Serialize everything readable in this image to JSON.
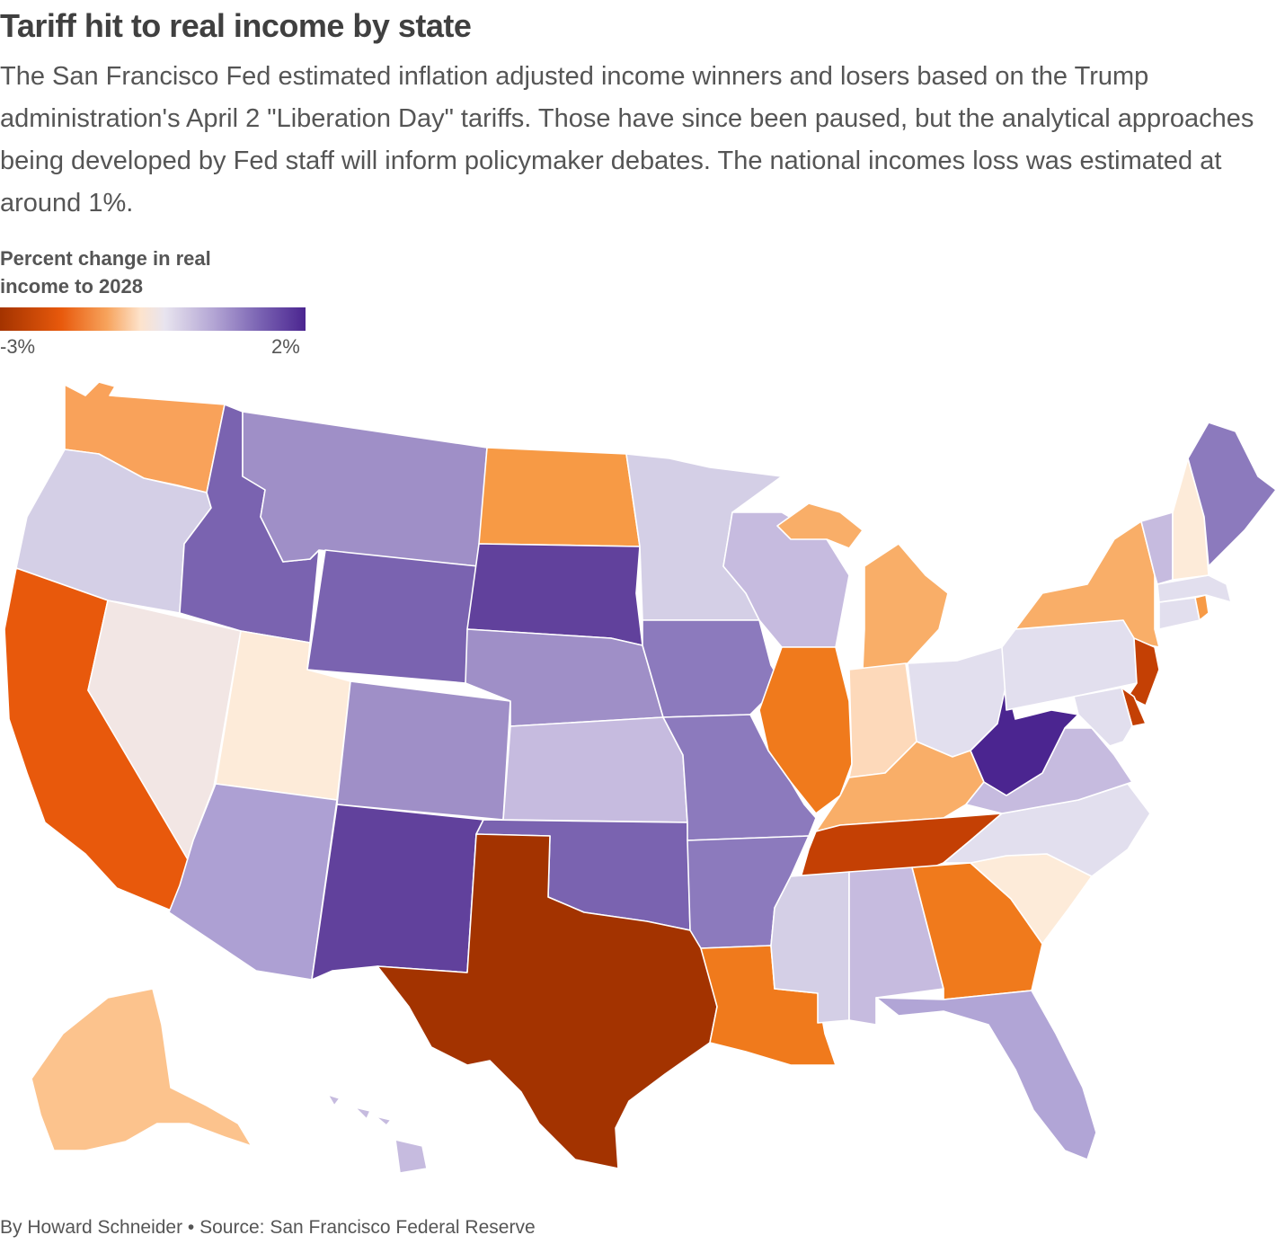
{
  "title": "Tariff hit to real income by state",
  "subtitle": "The San Francisco Fed estimated inflation adjusted income winners and losers based on the Trump administration's April 2 \"Liberation Day\" tariffs. Those have since been paused, but the analytical approaches being developed by Fed staff will inform policymaker debates. The national incomes loss was estimated at around 1%.",
  "legend": {
    "title": "Percent change in real income to 2028",
    "min_label": "-3%",
    "max_label": "2%"
  },
  "colors": {
    "deep_loss": "#a33300",
    "loss": "#c44004",
    "moderate_loss": "#e8590c",
    "orange": "#f79a45",
    "light_orange": "#f9ae68",
    "peach": "#fcc38d",
    "pale_peach": "#fdddc2",
    "cream": "#fdebd9",
    "neutral_pink": "#f2e6e4",
    "light_lavender": "#d4cfe6",
    "pale_lavender": "#e2dfee",
    "lavender": "#c6bbdf",
    "medium_lavender": "#b1a5d6",
    "purple_light": "#9f8fc7",
    "purple_medium": "#8c7abd",
    "purple": "#7a63b0",
    "purple_dark": "#61419c",
    "deep_purple": "#4b2590"
  },
  "states": [
    {
      "name": "WA",
      "color": "#f9a25a"
    },
    {
      "name": "OR",
      "color": "#d4cfe6"
    },
    {
      "name": "CA",
      "color": "#e8590c"
    },
    {
      "name": "NV",
      "color": "#f2e6e4"
    },
    {
      "name": "ID",
      "color": "#7a63b0"
    },
    {
      "name": "MT",
      "color": "#9f8fc7"
    },
    {
      "name": "WY",
      "color": "#7a63b0"
    },
    {
      "name": "UT",
      "color": "#fdebd9"
    },
    {
      "name": "AZ",
      "color": "#ada0d3"
    },
    {
      "name": "CO",
      "color": "#9f8fc7"
    },
    {
      "name": "NM",
      "color": "#61419c"
    },
    {
      "name": "ND",
      "color": "#f79a45"
    },
    {
      "name": "SD",
      "color": "#61419c"
    },
    {
      "name": "NE",
      "color": "#9f8fc7"
    },
    {
      "name": "KS",
      "color": "#c6bbdf"
    },
    {
      "name": "OK",
      "color": "#7a63b0"
    },
    {
      "name": "TX",
      "color": "#a33300"
    },
    {
      "name": "MN",
      "color": "#d4cfe6"
    },
    {
      "name": "IA",
      "color": "#8c7abd"
    },
    {
      "name": "MO",
      "color": "#8c7abd"
    },
    {
      "name": "AR",
      "color": "#8c7abd"
    },
    {
      "name": "LA",
      "color": "#f07a1c"
    },
    {
      "name": "WI",
      "color": "#c6bbdf"
    },
    {
      "name": "IL",
      "color": "#f07a1c"
    },
    {
      "name": "MI",
      "color": "#f9ae68"
    },
    {
      "name": "IN",
      "color": "#fdd9ba"
    },
    {
      "name": "OH",
      "color": "#e2dfee"
    },
    {
      "name": "KY",
      "color": "#f9ae68"
    },
    {
      "name": "TN",
      "color": "#c44004"
    },
    {
      "name": "MS",
      "color": "#d4cfe6"
    },
    {
      "name": "AL",
      "color": "#c6bbdf"
    },
    {
      "name": "GA",
      "color": "#f07a1c"
    },
    {
      "name": "FL",
      "color": "#b1a5d6"
    },
    {
      "name": "SC",
      "color": "#fdebd9"
    },
    {
      "name": "NC",
      "color": "#e2dfee"
    },
    {
      "name": "VA",
      "color": "#c6bbdf"
    },
    {
      "name": "WV",
      "color": "#4b2590"
    },
    {
      "name": "PA",
      "color": "#e2dfee"
    },
    {
      "name": "NY",
      "color": "#f9ae68"
    },
    {
      "name": "NJ",
      "color": "#c44004"
    },
    {
      "name": "DE",
      "color": "#c44004"
    },
    {
      "name": "MD",
      "color": "#e2dfee"
    },
    {
      "name": "CT",
      "color": "#e2dfee"
    },
    {
      "name": "RI",
      "color": "#f79a45"
    },
    {
      "name": "MA",
      "color": "#e2dfee"
    },
    {
      "name": "VT",
      "color": "#c6bbdf"
    },
    {
      "name": "NH",
      "color": "#fdebd9"
    },
    {
      "name": "ME",
      "color": "#8c7abd"
    },
    {
      "name": "AK",
      "color": "#fcc38d"
    },
    {
      "name": "HI",
      "color": "#c6bbdf"
    }
  ],
  "footer": "By Howard Schneider • Source: San Francisco Federal Reserve"
}
